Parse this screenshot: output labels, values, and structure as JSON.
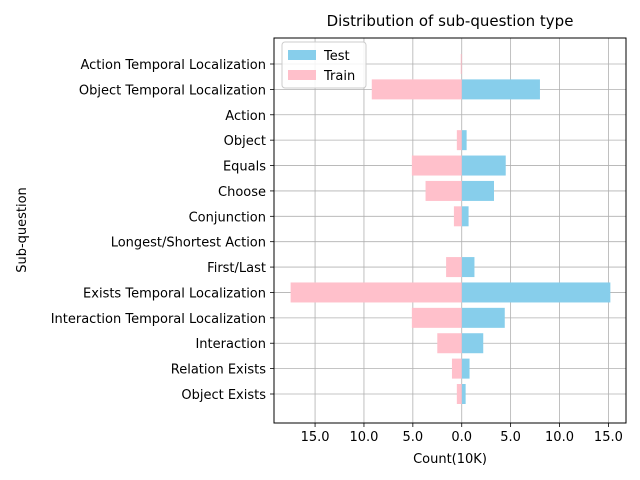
{
  "chart_data": {
    "type": "bar",
    "orientation": "horizontal",
    "title": "Distribution of sub-question type",
    "xlabel": "Count(10K)",
    "ylabel": "Sub-question",
    "xlim": [
      -19.2,
      16.8
    ],
    "xticks": [
      -15,
      -10,
      -5,
      0,
      5,
      10,
      15
    ],
    "xtick_labels": [
      "15.0",
      "10.0",
      "5.0",
      "0.0",
      "5.0",
      "10.0",
      "15.0"
    ],
    "grid": true,
    "legend_position": "top-left",
    "categories": [
      "Action Temporal Localization",
      "Object Temporal Localization",
      "Action",
      "Object",
      "Equals",
      "Choose",
      "Conjunction",
      "Longest/Shortest Action",
      "First/Last",
      "Exists Temporal Localization",
      "Interaction Temporal Localization",
      "Interaction",
      "Relation Exists",
      "Object Exists"
    ],
    "series": [
      {
        "name": "Test",
        "color": "#87ceeb",
        "direction": "right",
        "values": [
          0.0,
          8.0,
          0.0,
          0.5,
          4.5,
          3.3,
          0.7,
          0.0,
          1.3,
          15.2,
          4.4,
          2.2,
          0.8,
          0.4
        ]
      },
      {
        "name": "Train",
        "color": "#ffc0cb",
        "direction": "left",
        "values": [
          0.1,
          9.2,
          0.0,
          0.5,
          5.1,
          3.7,
          0.8,
          0.0,
          1.6,
          17.5,
          5.1,
          2.5,
          1.0,
          0.5
        ]
      }
    ]
  }
}
